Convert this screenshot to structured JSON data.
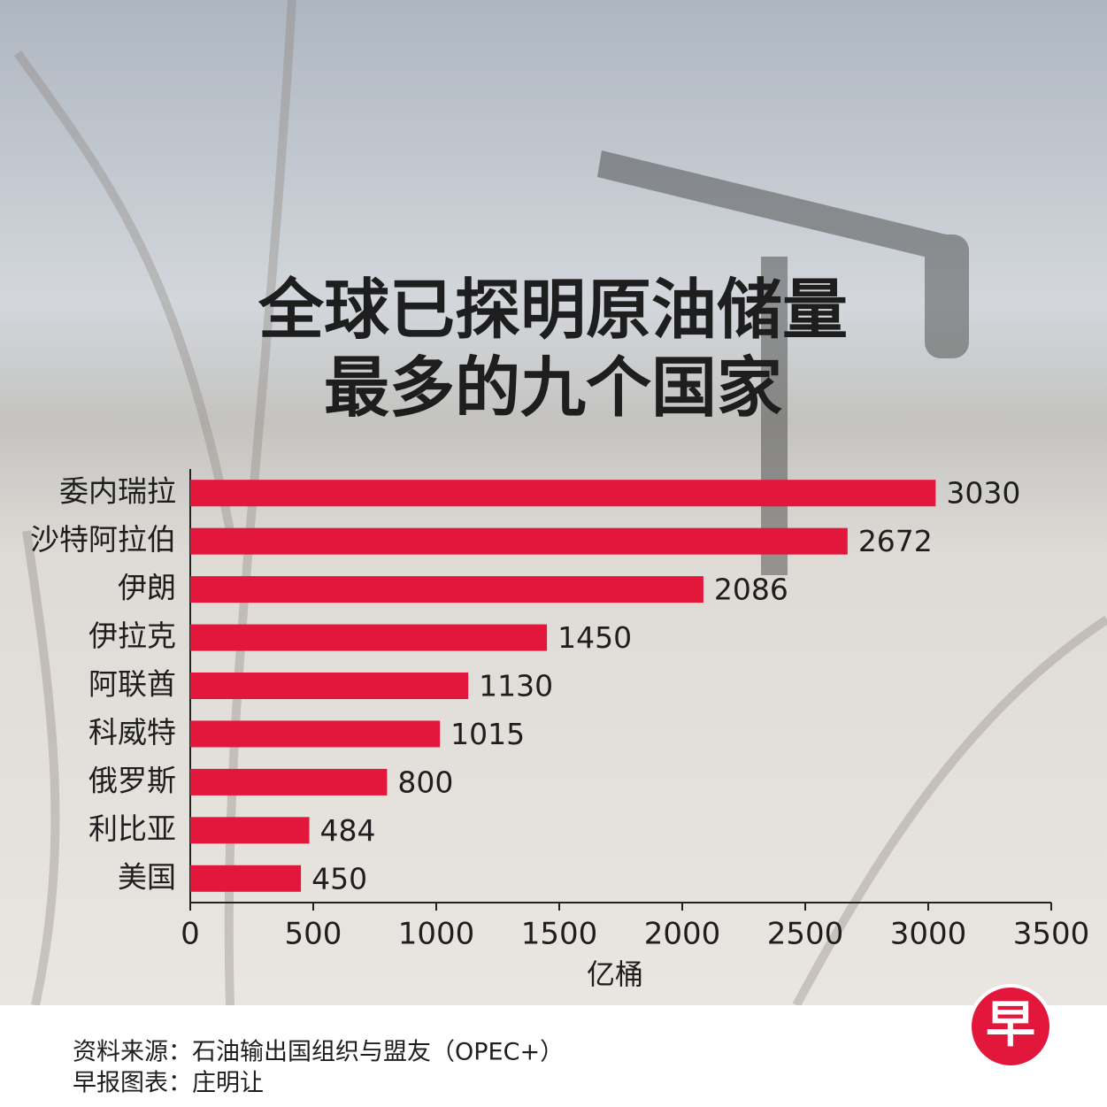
{
  "chart_data": {
    "type": "bar",
    "orientation": "horizontal",
    "title": [
      "全球已探明原油储量",
      "最多的九个国家"
    ],
    "categories": [
      "委内瑞拉",
      "沙特阿拉伯",
      "伊朗",
      "伊拉克",
      "阿联酋",
      "科威特",
      "俄罗斯",
      "利比亚",
      "美国"
    ],
    "values": [
      3030,
      2672,
      2086,
      1450,
      1130,
      1015,
      800,
      484,
      450
    ],
    "color": "#e3163c",
    "xlim": [
      0,
      3500
    ],
    "xticks": [
      0,
      500,
      1000,
      1500,
      2000,
      2500,
      3000,
      3500
    ],
    "xlabel": "亿桶",
    "source": "资料来源：石油输出国组织与盟友（OPEC+）",
    "credit": "早报图表：庄明让",
    "logo": "早"
  }
}
